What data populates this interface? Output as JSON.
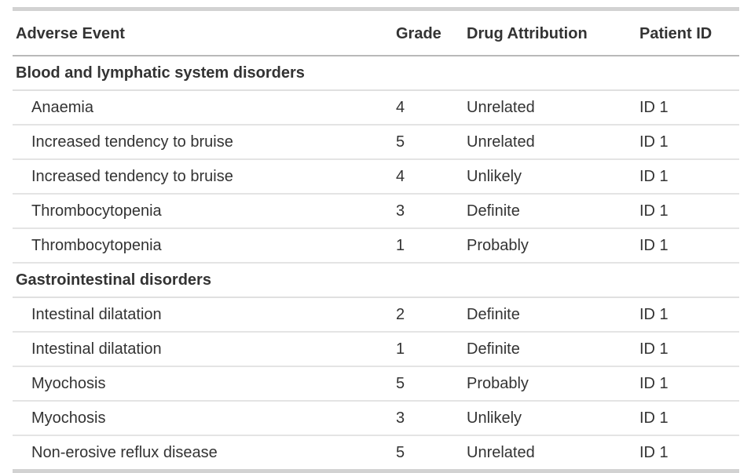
{
  "chart_data": {
    "type": "table",
    "title": "",
    "columns": [
      "Adverse Event",
      "Grade",
      "Drug Attribution",
      "Patient ID"
    ],
    "groups": [
      {
        "group": "Blood and lymphatic system disorders",
        "rows": [
          [
            "Anaemia",
            "4",
            "Unrelated",
            "ID 1"
          ],
          [
            "Increased tendency to bruise",
            "5",
            "Unrelated",
            "ID 1"
          ],
          [
            "Increased tendency to bruise",
            "4",
            "Unlikely",
            "ID 1"
          ],
          [
            "Thrombocytopenia",
            "3",
            "Definite",
            "ID 1"
          ],
          [
            "Thrombocytopenia",
            "1",
            "Probably",
            "ID 1"
          ]
        ]
      },
      {
        "group": "Gastrointestinal disorders",
        "rows": [
          [
            "Intestinal dilatation",
            "2",
            "Definite",
            "ID 1"
          ],
          [
            "Intestinal dilatation",
            "1",
            "Definite",
            "ID 1"
          ],
          [
            "Myochosis",
            "5",
            "Probably",
            "ID 1"
          ],
          [
            "Myochosis",
            "3",
            "Unlikely",
            "ID 1"
          ],
          [
            "Non-erosive reflux disease",
            "5",
            "Unrelated",
            "ID 1"
          ]
        ]
      }
    ],
    "layout": {
      "grid": "horizontal-rules-only",
      "group_rows": true,
      "data_row_indent": true
    },
    "colors": {
      "text": "#333333",
      "outer_border": "#d2d2d2",
      "header_border": "#b9b9b9",
      "row_border": "#e4e4e4",
      "background": "#ffffff"
    }
  }
}
